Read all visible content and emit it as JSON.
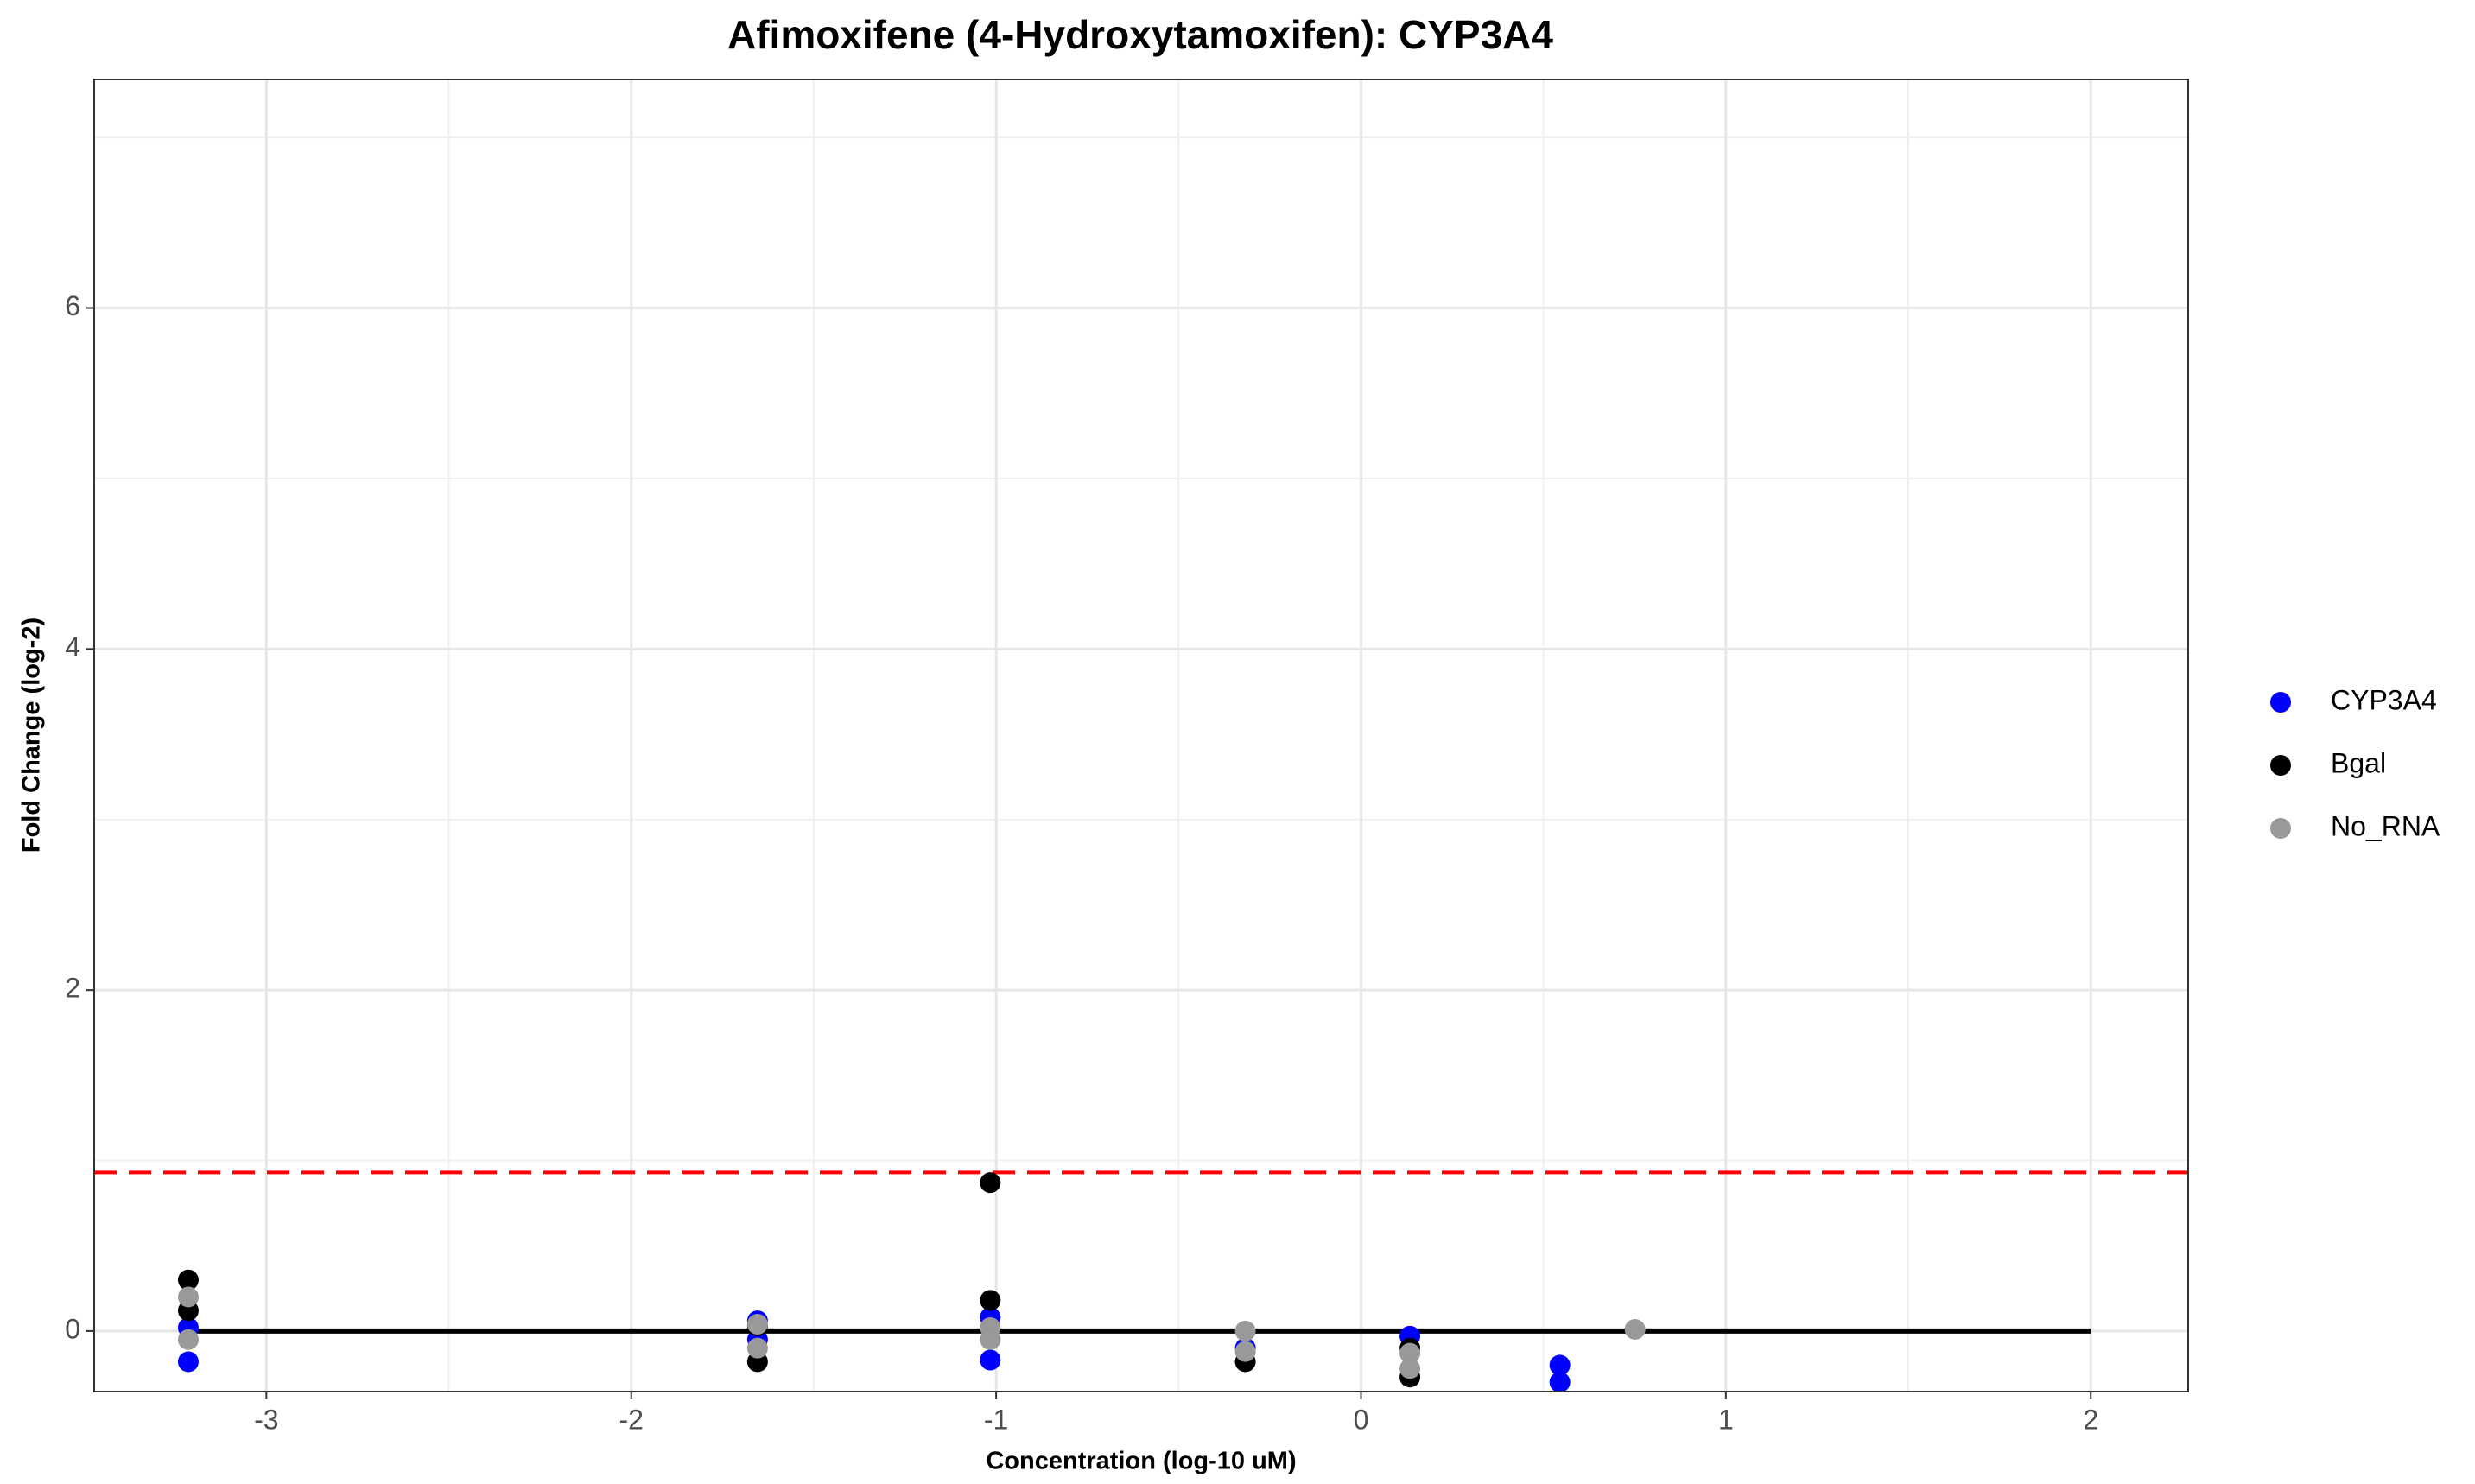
{
  "chart_data": {
    "type": "scatter",
    "title": "Afimoxifene (4-Hydroxytamoxifen): CYP3A4",
    "x_label": "Concentration (log-10 uM)",
    "y_label": "Fold Change (log-2)",
    "xlim": [
      -3.472,
      2.267
    ],
    "ylim": [
      -0.355,
      7.34
    ],
    "xticks": [
      -3,
      -2,
      -1,
      0,
      1,
      2
    ],
    "yticks": [
      0,
      2,
      4,
      6
    ],
    "minor_xticks": [
      -2.5,
      -1.5,
      -0.5,
      0.5,
      1.5
    ],
    "minor_yticks": [
      1,
      3,
      5,
      7
    ],
    "grid": true,
    "legend": "right",
    "series": [
      {
        "name": "CYP3A4",
        "color": "#0000ff",
        "x": [
          -3.214,
          -3.214,
          -1.654,
          -1.654,
          -1.016,
          -1.016,
          -0.317,
          0.134,
          0.545,
          0.545
        ],
        "values": [
          0.02,
          -0.18,
          0.06,
          -0.05,
          0.08,
          -0.17,
          -0.1,
          -0.03,
          -0.2,
          -0.3
        ]
      },
      {
        "name": "Bgal",
        "color": "#000000",
        "x": [
          -3.214,
          -3.214,
          -1.654,
          -1.654,
          -1.016,
          -1.016,
          -0.317,
          0.134,
          0.134
        ],
        "values": [
          0.3,
          0.12,
          -0.18,
          0.03,
          0.87,
          0.18,
          -0.18,
          -0.27,
          -0.1
        ]
      },
      {
        "name": "No_RNA",
        "color": "#999999",
        "x": [
          -3.214,
          -3.214,
          -1.654,
          -1.654,
          -1.016,
          -1.016,
          -0.317,
          -0.317,
          0.134,
          0.134,
          0.751
        ],
        "values": [
          0.2,
          -0.05,
          0.04,
          -0.1,
          0.02,
          -0.05,
          0.0,
          -0.12,
          -0.13,
          -0.22,
          0.01
        ]
      }
    ],
    "reference_lines": [
      {
        "y": 0.93,
        "color": "#ff0000",
        "dashed": true
      },
      {
        "y": 0,
        "x": [
          -3.214,
          2
        ],
        "color": "#000000",
        "dashed": false
      }
    ]
  }
}
